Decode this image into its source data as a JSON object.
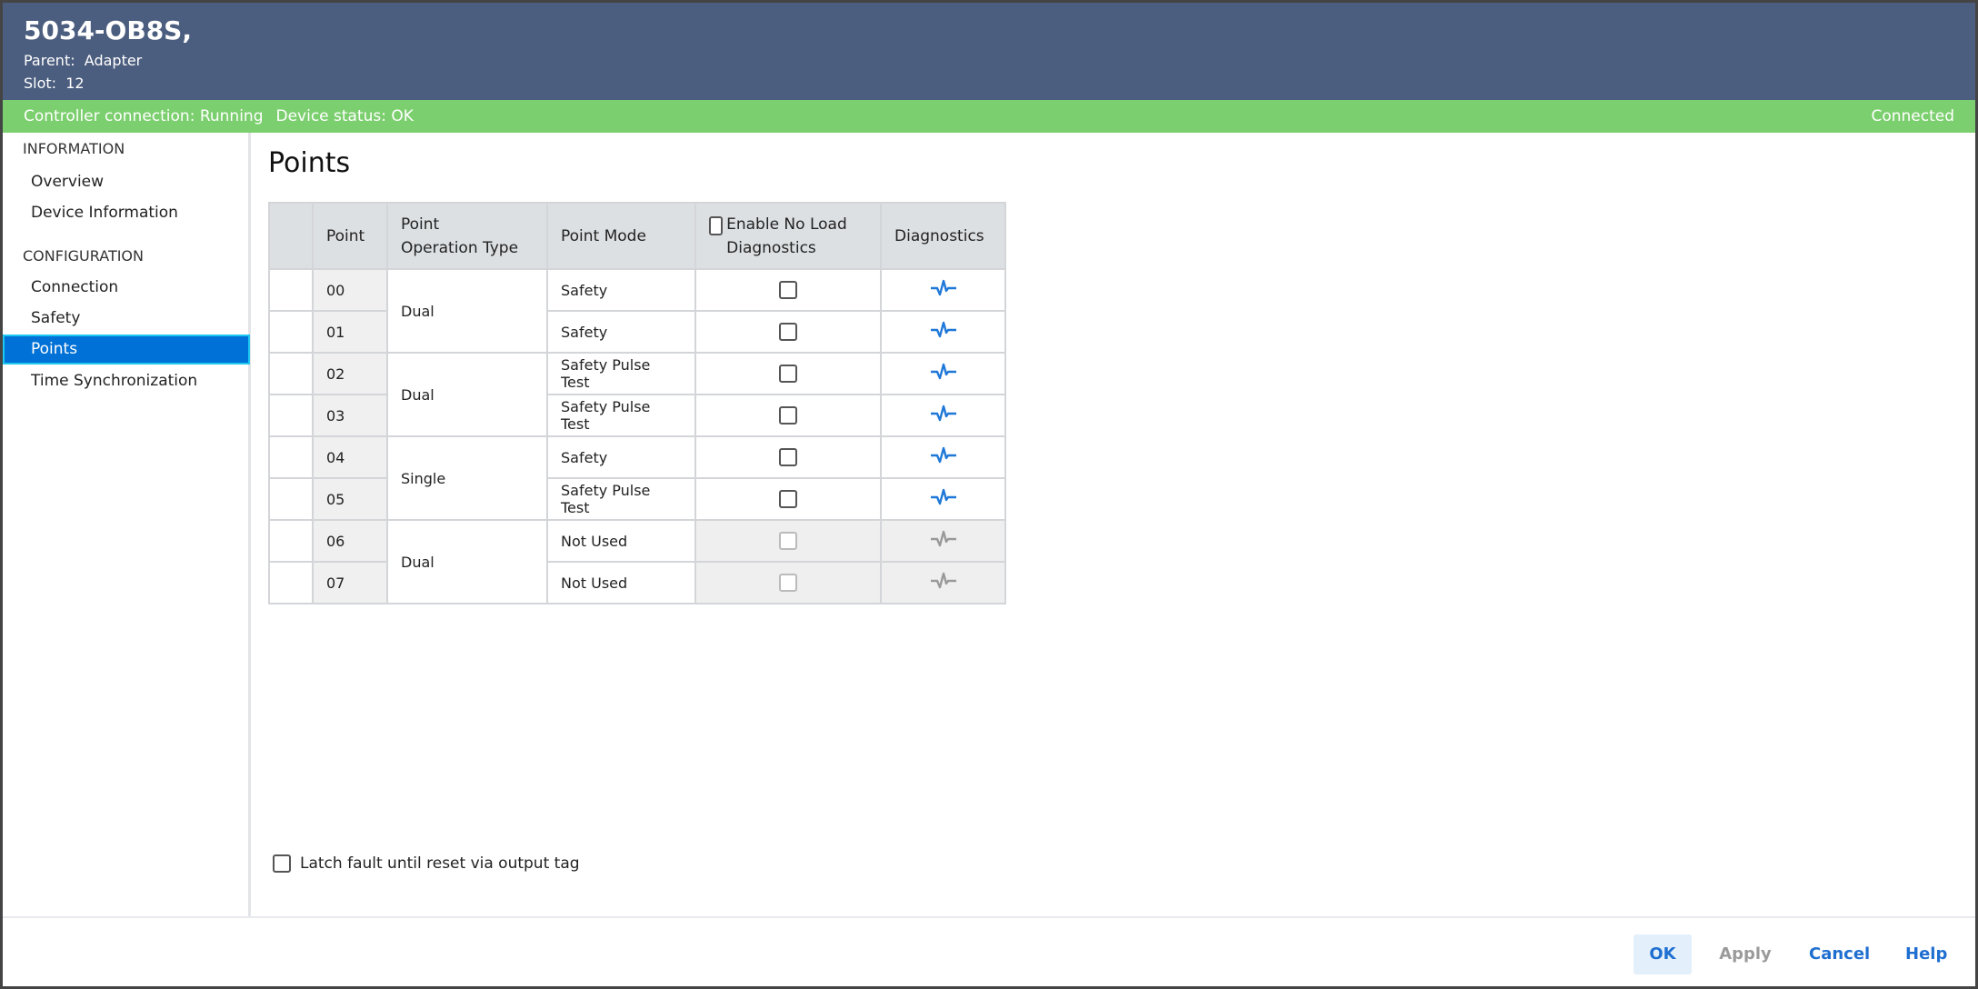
{
  "header": {
    "title": "5034-OB8S,",
    "parent_label": "Parent:",
    "parent": "Adapter",
    "slot_label": "Slot:",
    "slot": "12"
  },
  "status": {
    "controller": "Controller connection: Running",
    "device": "Device status: OK",
    "connection": "Connected",
    "color": "#7ccf6e"
  },
  "sidebar": {
    "sections": [
      {
        "label": "INFORMATION",
        "items": [
          "Overview",
          "Device Information"
        ]
      },
      {
        "label": "CONFIGURATION",
        "items": [
          "Connection",
          "Safety",
          "Points",
          "Time Synchronization"
        ]
      }
    ],
    "active": "Points"
  },
  "main": {
    "title": "Points",
    "columns": [
      "",
      "Point",
      "Point Operation Type",
      "Point Mode",
      "Enable No Load Diagnostics",
      "Diagnostics"
    ],
    "rows": [
      {
        "point": "00",
        "type": "Dual",
        "mode": "Safety",
        "no_load": false,
        "enabled": true
      },
      {
        "point": "01",
        "type": "",
        "mode": "Safety",
        "no_load": false,
        "enabled": true
      },
      {
        "point": "02",
        "type": "Dual",
        "mode": "Safety Pulse Test",
        "no_load": false,
        "enabled": true
      },
      {
        "point": "03",
        "type": "",
        "mode": "Safety Pulse Test",
        "no_load": false,
        "enabled": true
      },
      {
        "point": "04",
        "type": "Single",
        "mode": "Safety",
        "no_load": false,
        "enabled": true
      },
      {
        "point": "05",
        "type": "",
        "mode": "Safety Pulse Test",
        "no_load": false,
        "enabled": true
      },
      {
        "point": "06",
        "type": "Dual",
        "mode": "Not Used",
        "no_load": false,
        "enabled": false
      },
      {
        "point": "07",
        "type": "",
        "mode": "Not Used",
        "no_load": false,
        "enabled": false
      }
    ],
    "latch_label": "Latch fault until reset via output tag",
    "latch_checked": false
  },
  "footer": {
    "ok": "OK",
    "apply": "Apply",
    "cancel": "Cancel",
    "help": "Help"
  },
  "icons": {
    "diagnostics": "pulse-waveform-icon",
    "active_color": "#1f78d8",
    "disabled_color": "#999999"
  }
}
